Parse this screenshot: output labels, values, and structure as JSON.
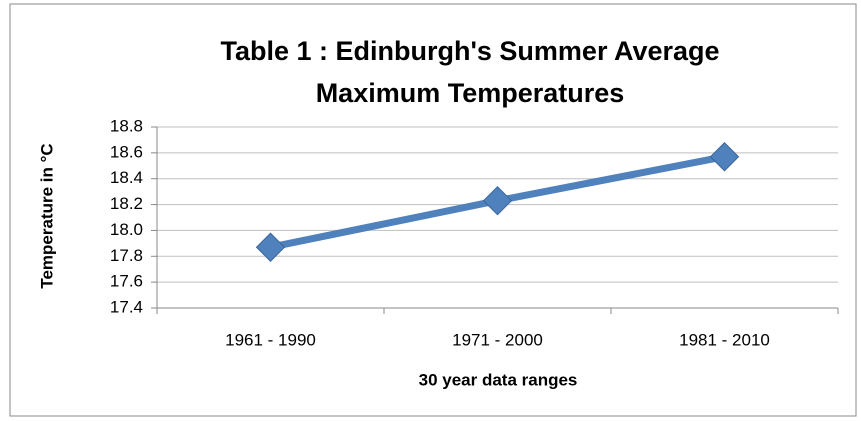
{
  "chart_data": {
    "type": "line",
    "title": [
      "Table 1 : Edinburgh's Summer Average",
      "Maximum Temperatures"
    ],
    "y_label": "Temperature in °C",
    "x_label": "30 year data ranges",
    "categories": [
      "1961 - 1990",
      "1971 - 2000",
      "1981 - 2010"
    ],
    "series": [
      {
        "name": "Temperature",
        "color": "#4f81bd",
        "values": [
          17.87,
          18.23,
          18.57
        ]
      }
    ],
    "ylim": [
      17.4,
      18.8
    ],
    "yticks": [
      17.4,
      17.6,
      17.8,
      {
        "value": 18,
        "label": "18.0"
      },
      18.2,
      18.4,
      18.6,
      18.8
    ],
    "grid": true
  }
}
